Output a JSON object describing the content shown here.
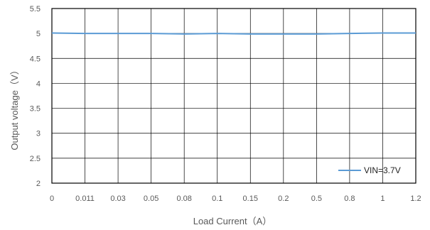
{
  "chart_data": {
    "type": "line",
    "title": "",
    "xlabel": "Load Current（A）",
    "ylabel": "Output voltage（V）",
    "categories": [
      "0",
      "0.011",
      "0.03",
      "0.05",
      "0.08",
      "0.1",
      "0.15",
      "0.2",
      "0.5",
      "0.8",
      "1",
      "1.2"
    ],
    "yticks": [
      "2",
      "2.5",
      "3",
      "3.5",
      "4",
      "4.5",
      "5",
      "5.5"
    ],
    "ylim": [
      2,
      5.5
    ],
    "grid": true,
    "legend_position": "bottom-right",
    "series": [
      {
        "name": "VIN=3.7V",
        "color": "#5b9bd5",
        "values": [
          5.01,
          5.0,
          5.0,
          5.0,
          4.99,
          5.0,
          4.99,
          4.99,
          4.99,
          5.0,
          5.01,
          5.01
        ]
      }
    ]
  }
}
